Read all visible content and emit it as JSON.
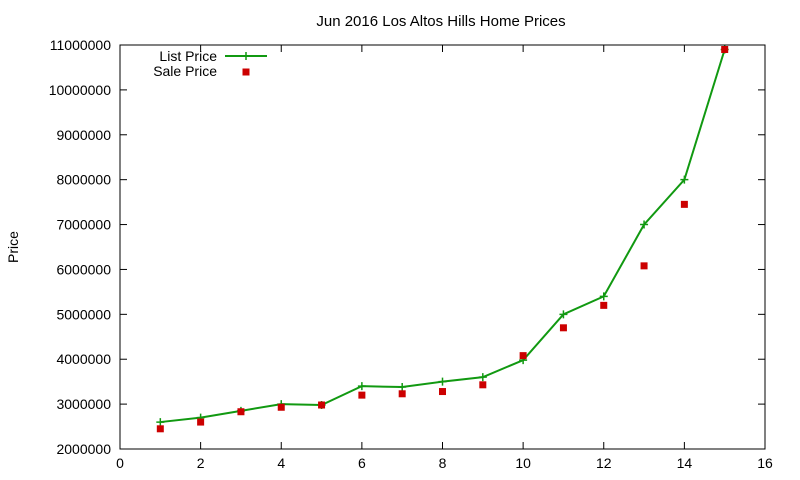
{
  "chart_data": {
    "type": "line",
    "title": "Jun 2016 Los Altos Hills Home Prices",
    "xlabel": "",
    "ylabel": "Price",
    "xlim": [
      0,
      16
    ],
    "ylim": [
      2000000,
      11000000
    ],
    "xticks": [
      0,
      2,
      4,
      6,
      8,
      10,
      12,
      14,
      16
    ],
    "yticks": [
      2000000,
      3000000,
      4000000,
      5000000,
      6000000,
      7000000,
      8000000,
      9000000,
      10000000,
      11000000
    ],
    "grid": false,
    "legend": "top-left",
    "series": [
      {
        "name": "List Price",
        "style": "line-plus",
        "color": "#119911",
        "x": [
          1,
          2,
          3,
          4,
          5,
          6,
          7,
          8,
          9,
          10,
          11,
          12,
          13,
          14,
          15
        ],
        "y": [
          2600000,
          2700000,
          2850000,
          3000000,
          2980000,
          3400000,
          3380000,
          3500000,
          3600000,
          3980000,
          5000000,
          5400000,
          7000000,
          8000000,
          10900000
        ]
      },
      {
        "name": "Sale Price",
        "style": "square-points",
        "color": "#cc0000",
        "x": [
          1,
          2,
          3,
          4,
          5,
          6,
          7,
          8,
          9,
          10,
          11,
          12,
          13,
          14,
          15
        ],
        "y": [
          2450000,
          2600000,
          2830000,
          2930000,
          2980000,
          3200000,
          3230000,
          3280000,
          3430000,
          4080000,
          4700000,
          5200000,
          6080000,
          7450000,
          10900000
        ]
      }
    ]
  }
}
